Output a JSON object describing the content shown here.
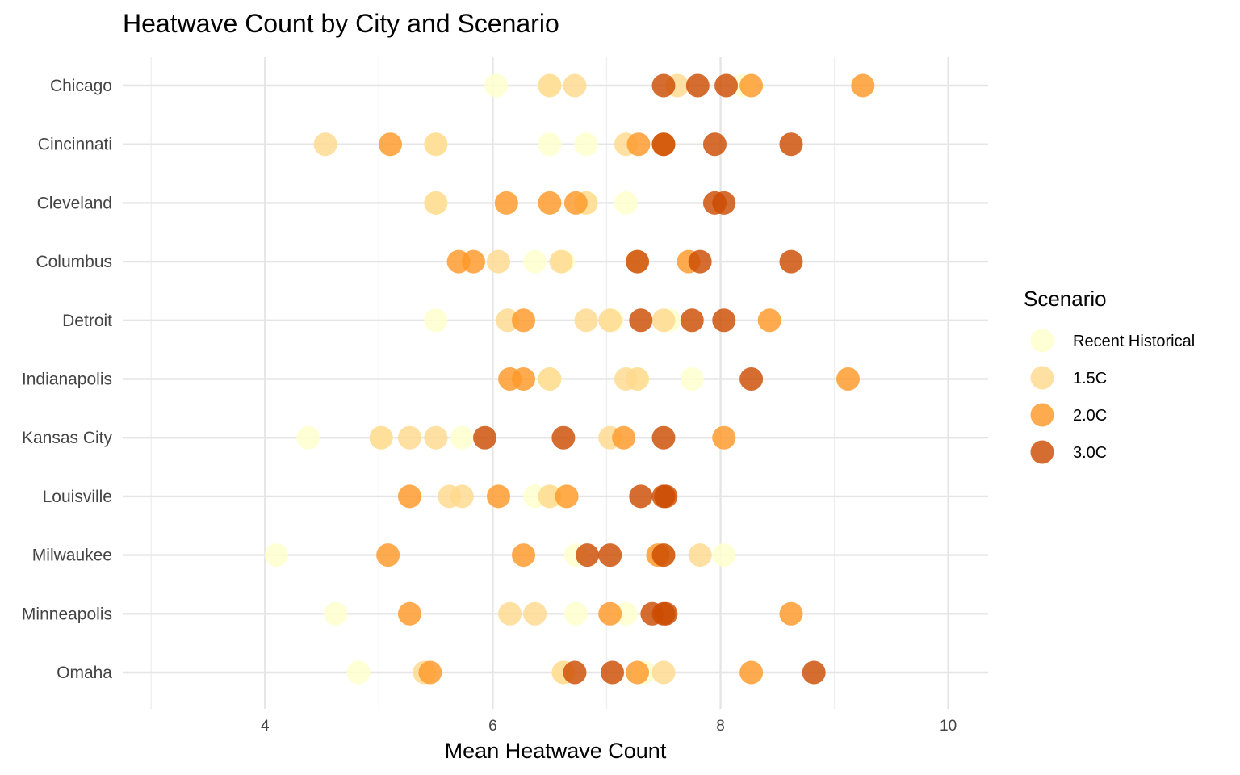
{
  "chart_data": {
    "type": "scatter",
    "title": "Heatwave Count by City and Scenario",
    "xlabel": "Mean Heatwave Count",
    "ylabel": "",
    "xlim": [
      2.75,
      10.35
    ],
    "xticks": [
      4,
      6,
      8,
      10
    ],
    "x_minor_ticks": [
      3,
      5,
      7,
      9
    ],
    "grid": true,
    "legend": {
      "title": "Scenario",
      "placement": "right"
    },
    "categories": [
      "Chicago",
      "Cincinnati",
      "Cleveland",
      "Columbus",
      "Detroit",
      "Indianapolis",
      "Kansas City",
      "Louisville",
      "Milwaukee",
      "Minneapolis",
      "Omaha"
    ],
    "series": [
      {
        "name": "Recent Historical",
        "color": "#FFFFCC",
        "points": [
          {
            "city": "Chicago",
            "x": 6.03
          },
          {
            "city": "Chicago",
            "x": 6.5
          },
          {
            "city": "Chicago",
            "x": 8.2
          },
          {
            "city": "Cincinnati",
            "x": 5.5
          },
          {
            "city": "Cincinnati",
            "x": 6.5
          },
          {
            "city": "Cincinnati",
            "x": 6.82
          },
          {
            "city": "Cleveland",
            "x": 5.5
          },
          {
            "city": "Cleveland",
            "x": 6.82
          },
          {
            "city": "Cleveland",
            "x": 7.17
          },
          {
            "city": "Columbus",
            "x": 6.37
          },
          {
            "city": "Columbus",
            "x": 6.62
          },
          {
            "city": "Detroit",
            "x": 5.5
          },
          {
            "city": "Detroit",
            "x": 7.05
          },
          {
            "city": "Detroit",
            "x": 7.55
          },
          {
            "city": "Indianapolis",
            "x": 6.5
          },
          {
            "city": "Indianapolis",
            "x": 7.27
          },
          {
            "city": "Indianapolis",
            "x": 7.75
          },
          {
            "city": "Kansas City",
            "x": 4.38
          },
          {
            "city": "Kansas City",
            "x": 5.02
          },
          {
            "city": "Kansas City",
            "x": 5.73
          },
          {
            "city": "Louisville",
            "x": 6.37
          },
          {
            "city": "Louisville",
            "x": 6.5
          },
          {
            "city": "Louisville",
            "x": 6.62
          },
          {
            "city": "Milwaukee",
            "x": 4.1
          },
          {
            "city": "Milwaukee",
            "x": 6.73
          },
          {
            "city": "Milwaukee",
            "x": 8.03
          },
          {
            "city": "Minneapolis",
            "x": 4.62
          },
          {
            "city": "Minneapolis",
            "x": 6.73
          },
          {
            "city": "Minneapolis",
            "x": 7.17
          },
          {
            "city": "Omaha",
            "x": 4.82
          },
          {
            "city": "Omaha",
            "x": 6.62
          },
          {
            "city": "Omaha",
            "x": 7.33
          }
        ]
      },
      {
        "name": "1.5C",
        "color": "#FED98E",
        "points": [
          {
            "city": "Chicago",
            "x": 6.5
          },
          {
            "city": "Chicago",
            "x": 6.72
          },
          {
            "city": "Chicago",
            "x": 7.62
          },
          {
            "city": "Cincinnati",
            "x": 4.53
          },
          {
            "city": "Cincinnati",
            "x": 5.5
          },
          {
            "city": "Cincinnati",
            "x": 7.17
          },
          {
            "city": "Cleveland",
            "x": 5.5
          },
          {
            "city": "Cleveland",
            "x": 6.82
          },
          {
            "city": "Columbus",
            "x": 6.05
          },
          {
            "city": "Columbus",
            "x": 6.6
          },
          {
            "city": "Columbus",
            "x": 7.27
          },
          {
            "city": "Detroit",
            "x": 6.13
          },
          {
            "city": "Detroit",
            "x": 6.82
          },
          {
            "city": "Detroit",
            "x": 7.03
          },
          {
            "city": "Detroit",
            "x": 7.5
          },
          {
            "city": "Indianapolis",
            "x": 6.5
          },
          {
            "city": "Indianapolis",
            "x": 7.17
          },
          {
            "city": "Indianapolis",
            "x": 7.27
          },
          {
            "city": "Kansas City",
            "x": 5.02
          },
          {
            "city": "Kansas City",
            "x": 5.27
          },
          {
            "city": "Kansas City",
            "x": 5.5
          },
          {
            "city": "Kansas City",
            "x": 7.03
          },
          {
            "city": "Louisville",
            "x": 5.62
          },
          {
            "city": "Louisville",
            "x": 5.73
          },
          {
            "city": "Louisville",
            "x": 6.5
          },
          {
            "city": "Milwaukee",
            "x": 7.5
          },
          {
            "city": "Milwaukee",
            "x": 7.82
          },
          {
            "city": "Minneapolis",
            "x": 6.15
          },
          {
            "city": "Minneapolis",
            "x": 6.37
          },
          {
            "city": "Omaha",
            "x": 5.4
          },
          {
            "city": "Omaha",
            "x": 6.62
          },
          {
            "city": "Omaha",
            "x": 7.5
          }
        ]
      },
      {
        "name": "2.0C",
        "color": "#FE9929",
        "points": [
          {
            "city": "Chicago",
            "x": 8.27
          },
          {
            "city": "Chicago",
            "x": 9.25
          },
          {
            "city": "Cincinnati",
            "x": 5.1
          },
          {
            "city": "Cincinnati",
            "x": 7.28
          },
          {
            "city": "Cincinnati",
            "x": 7.5
          },
          {
            "city": "Cleveland",
            "x": 6.12
          },
          {
            "city": "Cleveland",
            "x": 6.5
          },
          {
            "city": "Cleveland",
            "x": 6.73
          },
          {
            "city": "Columbus",
            "x": 5.7
          },
          {
            "city": "Columbus",
            "x": 5.83
          },
          {
            "city": "Columbus",
            "x": 7.72
          },
          {
            "city": "Detroit",
            "x": 6.27
          },
          {
            "city": "Detroit",
            "x": 8.43
          },
          {
            "city": "Indianapolis",
            "x": 6.15
          },
          {
            "city": "Indianapolis",
            "x": 6.27
          },
          {
            "city": "Indianapolis",
            "x": 9.12
          },
          {
            "city": "Kansas City",
            "x": 7.15
          },
          {
            "city": "Kansas City",
            "x": 8.03
          },
          {
            "city": "Louisville",
            "x": 5.27
          },
          {
            "city": "Louisville",
            "x": 6.05
          },
          {
            "city": "Louisville",
            "x": 6.65
          },
          {
            "city": "Milwaukee",
            "x": 5.08
          },
          {
            "city": "Milwaukee",
            "x": 6.27
          },
          {
            "city": "Milwaukee",
            "x": 7.45
          },
          {
            "city": "Minneapolis",
            "x": 5.27
          },
          {
            "city": "Minneapolis",
            "x": 7.03
          },
          {
            "city": "Minneapolis",
            "x": 8.62
          },
          {
            "city": "Omaha",
            "x": 5.45
          },
          {
            "city": "Omaha",
            "x": 7.27
          },
          {
            "city": "Omaha",
            "x": 8.27
          }
        ]
      },
      {
        "name": "3.0C",
        "color": "#CC4C02",
        "points": [
          {
            "city": "Chicago",
            "x": 7.5
          },
          {
            "city": "Chicago",
            "x": 7.8
          },
          {
            "city": "Chicago",
            "x": 8.05
          },
          {
            "city": "Cincinnati",
            "x": 7.5
          },
          {
            "city": "Cincinnati",
            "x": 7.95
          },
          {
            "city": "Cincinnati",
            "x": 8.62
          },
          {
            "city": "Cleveland",
            "x": 7.95
          },
          {
            "city": "Cleveland",
            "x": 8.03
          },
          {
            "city": "Columbus",
            "x": 7.27
          },
          {
            "city": "Columbus",
            "x": 7.82
          },
          {
            "city": "Columbus",
            "x": 8.62
          },
          {
            "city": "Detroit",
            "x": 7.3
          },
          {
            "city": "Detroit",
            "x": 7.75
          },
          {
            "city": "Detroit",
            "x": 8.03
          },
          {
            "city": "Indianapolis",
            "x": 8.27
          },
          {
            "city": "Kansas City",
            "x": 5.93
          },
          {
            "city": "Kansas City",
            "x": 6.62
          },
          {
            "city": "Kansas City",
            "x": 7.5
          },
          {
            "city": "Louisville",
            "x": 7.3
          },
          {
            "city": "Louisville",
            "x": 7.5
          },
          {
            "city": "Louisville",
            "x": 7.52
          },
          {
            "city": "Milwaukee",
            "x": 6.83
          },
          {
            "city": "Milwaukee",
            "x": 7.03
          },
          {
            "city": "Milwaukee",
            "x": 7.5
          },
          {
            "city": "Minneapolis",
            "x": 7.4
          },
          {
            "city": "Minneapolis",
            "x": 7.5
          },
          {
            "city": "Minneapolis",
            "x": 7.52
          },
          {
            "city": "Omaha",
            "x": 6.72
          },
          {
            "city": "Omaha",
            "x": 7.05
          },
          {
            "city": "Omaha",
            "x": 8.82
          }
        ]
      }
    ]
  }
}
